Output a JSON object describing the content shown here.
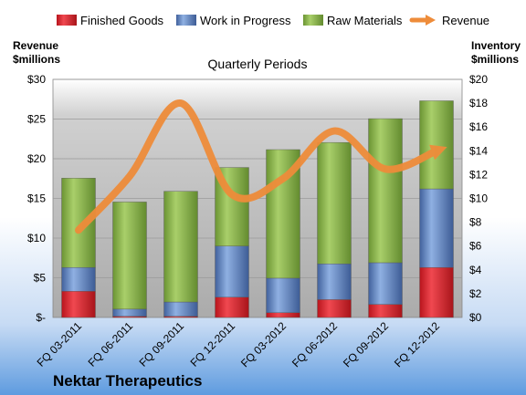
{
  "chart_data": {
    "type": "bar",
    "subtype": "stacked-bar-with-line",
    "title": "Quarterly Periods",
    "company": "Nektar Therapeutics",
    "categories": [
      "FQ 03-2011",
      "FQ 06-2011",
      "FQ 09-2011",
      "FQ 12-2011",
      "FQ 03-2012",
      "FQ 06-2012",
      "FQ 09-2012",
      "FQ 12-2012"
    ],
    "stack_series": [
      {
        "name": "Finished Goods",
        "color": "#d9202a",
        "axis": "right",
        "values": [
          2.2,
          0.1,
          0.1,
          1.7,
          0.4,
          1.5,
          1.1,
          4.2
        ]
      },
      {
        "name": "Work in Progress",
        "color": "#5b7fbf",
        "axis": "right",
        "values": [
          2.0,
          0.6,
          1.2,
          4.3,
          2.9,
          3.0,
          3.5,
          6.6
        ]
      },
      {
        "name": "Raw Materials",
        "color": "#8db84a",
        "axis": "right",
        "values": [
          7.5,
          9.0,
          9.3,
          6.6,
          10.8,
          10.2,
          12.1,
          7.4
        ]
      }
    ],
    "line_series": {
      "name": "Revenue",
      "color": "#ee8c3a",
      "axis": "left",
      "values": [
        11.0,
        17.8,
        27.0,
        15.5,
        17.5,
        23.5,
        18.7,
        21.0
      ]
    },
    "y_left": {
      "label_line1": "Revenue",
      "label_line2": "$millions",
      "min": 0,
      "max": 30,
      "ticks": [
        0,
        5,
        10,
        15,
        20,
        25,
        30
      ],
      "tick_labels": [
        "$-",
        "$5",
        "$10",
        "$15",
        "$20",
        "$25",
        "$30"
      ]
    },
    "y_right": {
      "label_line1": "Inventory",
      "label_line2": "$millions",
      "min": 0,
      "max": 20,
      "ticks": [
        0,
        2,
        4,
        6,
        8,
        10,
        12,
        14,
        16,
        18,
        20
      ],
      "tick_labels": [
        "$0",
        "$2",
        "$4",
        "$6",
        "$8",
        "$10",
        "$12",
        "$14",
        "$16",
        "$18",
        "$20"
      ]
    },
    "legend_position": "top",
    "grid": true
  }
}
